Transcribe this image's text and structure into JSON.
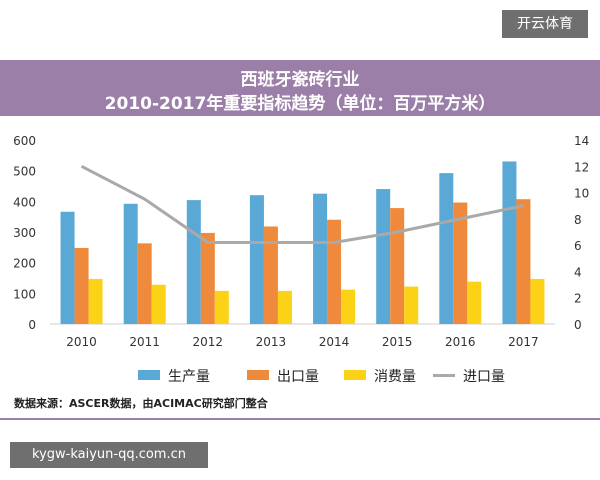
{
  "corner_label": "开云体育",
  "url_label": "kygw-kaiyun-qq.com.cn",
  "source_note": "数据来源：ASCER数据，由ACIMAC研究部门整合",
  "colors": {
    "title_band": "#9b7fa8",
    "production": "#5aa8d6",
    "export": "#ef8a3c",
    "consumption": "#fcd217",
    "import": "#a9a9a9"
  },
  "chart_data": {
    "type": "bar",
    "title": "西班牙瓷砖行业",
    "subtitle": "2010-2017年重要指标趋势（单位：百万平方米）",
    "categories": [
      "2010",
      "2011",
      "2012",
      "2013",
      "2014",
      "2015",
      "2016",
      "2017"
    ],
    "series": [
      {
        "name": "生产量",
        "type": "bar",
        "axis": "left",
        "values": [
          366,
          392,
          404,
          420,
          425,
          440,
          492,
          530
        ]
      },
      {
        "name": "出口量",
        "type": "bar",
        "axis": "left",
        "values": [
          248,
          263,
          297,
          318,
          340,
          378,
          396,
          407
        ]
      },
      {
        "name": "消费量",
        "type": "bar",
        "axis": "left",
        "values": [
          147,
          128,
          108,
          108,
          112,
          122,
          138,
          147
        ]
      },
      {
        "name": "进口量",
        "type": "line",
        "axis": "right",
        "values": [
          12,
          9.5,
          6.2,
          6.2,
          6.2,
          7,
          8,
          9
        ]
      }
    ],
    "y_left": {
      "min": 0,
      "max": 600,
      "ticks": [
        0,
        100,
        200,
        300,
        400,
        500,
        600
      ]
    },
    "y_right": {
      "min": 0,
      "max": 14,
      "ticks": [
        0,
        2,
        4,
        6,
        8,
        10,
        12,
        14
      ]
    },
    "grid": false,
    "legend_position": "bottom"
  }
}
